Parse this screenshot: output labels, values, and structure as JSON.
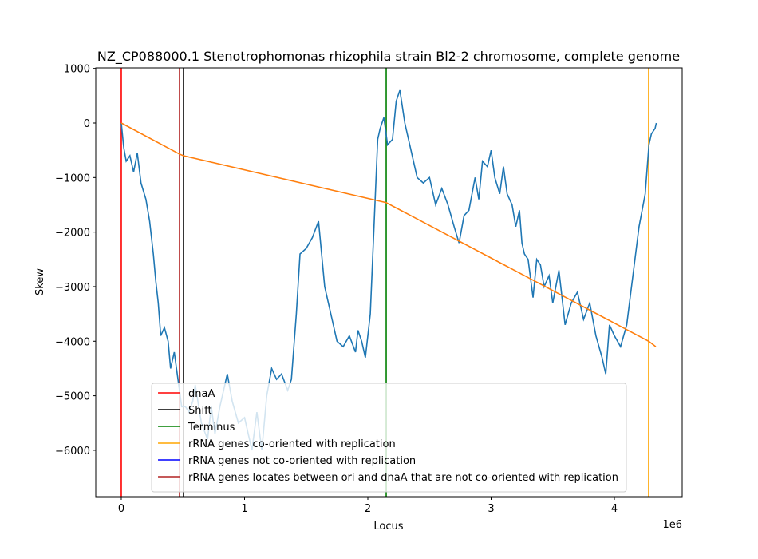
{
  "chart_data": {
    "type": "line",
    "title": "NZ_CP088000.1 Stenotrophomonas rhizophila strain Bl2-2 chromosome, complete genome",
    "xlabel": "Locus",
    "ylabel": "Skew",
    "x_offset_label": "1e6",
    "xlim": [
      -207000,
      4550000
    ],
    "ylim": [
      -6850,
      1010
    ],
    "xticks": [
      0,
      {
        "value": 1000000,
        "label": "1"
      },
      {
        "value": 2000000,
        "label": "2"
      },
      {
        "value": 3000000,
        "label": "3"
      },
      {
        "value": 4000000,
        "label": "4"
      }
    ],
    "yticks": [
      1000,
      0,
      {
        "value": -1000,
        "label": "−1000"
      },
      {
        "value": -2000,
        "label": "−2000"
      },
      {
        "value": -3000,
        "label": "−3000"
      },
      {
        "value": -4000,
        "label": "−4000"
      },
      {
        "value": -5000,
        "label": "−5000"
      },
      {
        "value": -6000,
        "label": "−6000"
      }
    ],
    "legend": "lower center",
    "series": [
      {
        "color": "#1f77b4",
        "x": [
          0,
          20000,
          40000,
          70000,
          100000,
          130000,
          160000,
          200000,
          230000,
          260000,
          280000,
          300000,
          320000,
          350000,
          380000,
          400000,
          430000,
          460000,
          490000,
          520000,
          550000,
          580000,
          600000,
          650000,
          700000,
          730000,
          760000,
          800000,
          860000,
          900000,
          950000,
          1000000,
          1060000,
          1100000,
          1140000,
          1180000,
          1220000,
          1260000,
          1300000,
          1350000,
          1380000,
          1420000,
          1450000,
          1500000,
          1550000,
          1600000,
          1650000,
          1700000,
          1750000,
          1800000,
          1850000,
          1900000,
          1920000,
          1950000,
          1980000,
          2020000,
          2050000,
          2080000,
          2100000,
          2130000,
          2160000,
          2200000,
          2230000,
          2260000,
          2300000,
          2350000,
          2400000,
          2450000,
          2500000,
          2550000,
          2600000,
          2650000,
          2700000,
          2740000,
          2780000,
          2820000,
          2870000,
          2900000,
          2930000,
          2970000,
          3000000,
          3030000,
          3070000,
          3100000,
          3130000,
          3170000,
          3200000,
          3230000,
          3250000,
          3270000,
          3300000,
          3340000,
          3370000,
          3400000,
          3430000,
          3470000,
          3500000,
          3550000,
          3600000,
          3650000,
          3700000,
          3750000,
          3800000,
          3850000,
          3900000,
          3930000,
          3960000,
          4000000,
          4050000,
          4100000,
          4150000,
          4200000,
          4250000,
          4280000,
          4300000,
          4330000,
          4340000
        ],
        "values": [
          0,
          -450,
          -700,
          -600,
          -900,
          -550,
          -1100,
          -1400,
          -1800,
          -2400,
          -2900,
          -3300,
          -3900,
          -3750,
          -4000,
          -4500,
          -4200,
          -4700,
          -5200,
          -5200,
          -5300,
          -5100,
          -4800,
          -5500,
          -5800,
          -5200,
          -5700,
          -5200,
          -4600,
          -5100,
          -5500,
          -5400,
          -6000,
          -5300,
          -6000,
          -5000,
          -4500,
          -4700,
          -4600,
          -4900,
          -4700,
          -3500,
          -2400,
          -2300,
          -2100,
          -1800,
          -3000,
          -3500,
          -4000,
          -4100,
          -3900,
          -4200,
          -3800,
          -4000,
          -4300,
          -3500,
          -1900,
          -300,
          -100,
          100,
          -400,
          -300,
          400,
          600,
          0,
          -500,
          -1000,
          -1100,
          -1000,
          -1500,
          -1200,
          -1500,
          -1900,
          -2200,
          -1700,
          -1600,
          -1000,
          -1400,
          -700,
          -800,
          -500,
          -1000,
          -1300,
          -800,
          -1300,
          -1500,
          -1900,
          -1600,
          -2200,
          -2400,
          -2500,
          -3200,
          -2500,
          -2600,
          -3000,
          -2800,
          -3300,
          -2700,
          -3700,
          -3300,
          -3100,
          -3600,
          -3300,
          -3900,
          -4300,
          -4600,
          -3700,
          -3900,
          -4100,
          -3700,
          -2800,
          -1900,
          -1300,
          -400,
          -200,
          -100,
          0
        ]
      },
      {
        "color": "#ff7f0e",
        "x": [
          0,
          472500,
          505000,
          2149000,
          4278000,
          4336000
        ],
        "values": [
          0,
          -570,
          -600,
          -1460,
          -4000,
          -4100
        ]
      }
    ],
    "vlines": [
      {
        "name": "dnaA",
        "color": "#ff0000",
        "x": [
          0
        ]
      },
      {
        "name": "Shift",
        "color": "#000000",
        "x": [
          505000
        ]
      },
      {
        "name": "Terminus",
        "color": "#008000",
        "x": [
          2149000
        ]
      },
      {
        "name": "rRNA genes co-oriented with replication",
        "color": "#ffa500",
        "x": [
          4278000
        ]
      },
      {
        "name": "rRNA genes not co-oriented with replication",
        "color": "#0000ff",
        "x": []
      },
      {
        "name": "rRNA genes locates between ori and dnaA that are not co-oriented with replication",
        "color": "#b22222",
        "x": [
          472500
        ]
      }
    ]
  }
}
